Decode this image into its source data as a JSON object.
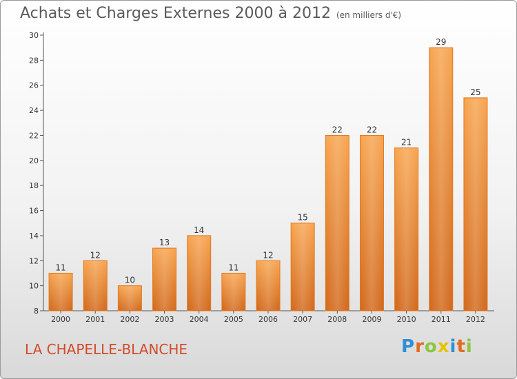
{
  "header": {
    "title": "Achats et Charges Externes 2000 à 2012",
    "subtitle": "(en milliers d'€)"
  },
  "footer": {
    "commune": "LA CHAPELLE-BLANCHE",
    "brand": "Proxiti",
    "brand_letters": [
      "P",
      "r",
      "o",
      "x",
      "i",
      "t",
      "i"
    ],
    "brand_colors": [
      "#2f8fd6",
      "#e36a1e",
      "#8cc63f",
      "#e8c200",
      "#2f8fd6",
      "#e36a1e",
      "#8cc63f"
    ]
  },
  "chart_data": {
    "type": "bar",
    "categories": [
      "2000",
      "2001",
      "2002",
      "2003",
      "2004",
      "2005",
      "2006",
      "2007",
      "2008",
      "2009",
      "2010",
      "2011",
      "2012"
    ],
    "values": [
      11,
      12,
      10,
      13,
      14,
      11,
      12,
      15,
      22,
      22,
      21,
      29,
      25
    ],
    "ylim": [
      8,
      30
    ],
    "yticks": [
      8,
      10,
      12,
      14,
      16,
      18,
      20,
      22,
      24,
      26,
      28,
      30
    ],
    "bar_color": "#f08a2a",
    "grid": false
  }
}
